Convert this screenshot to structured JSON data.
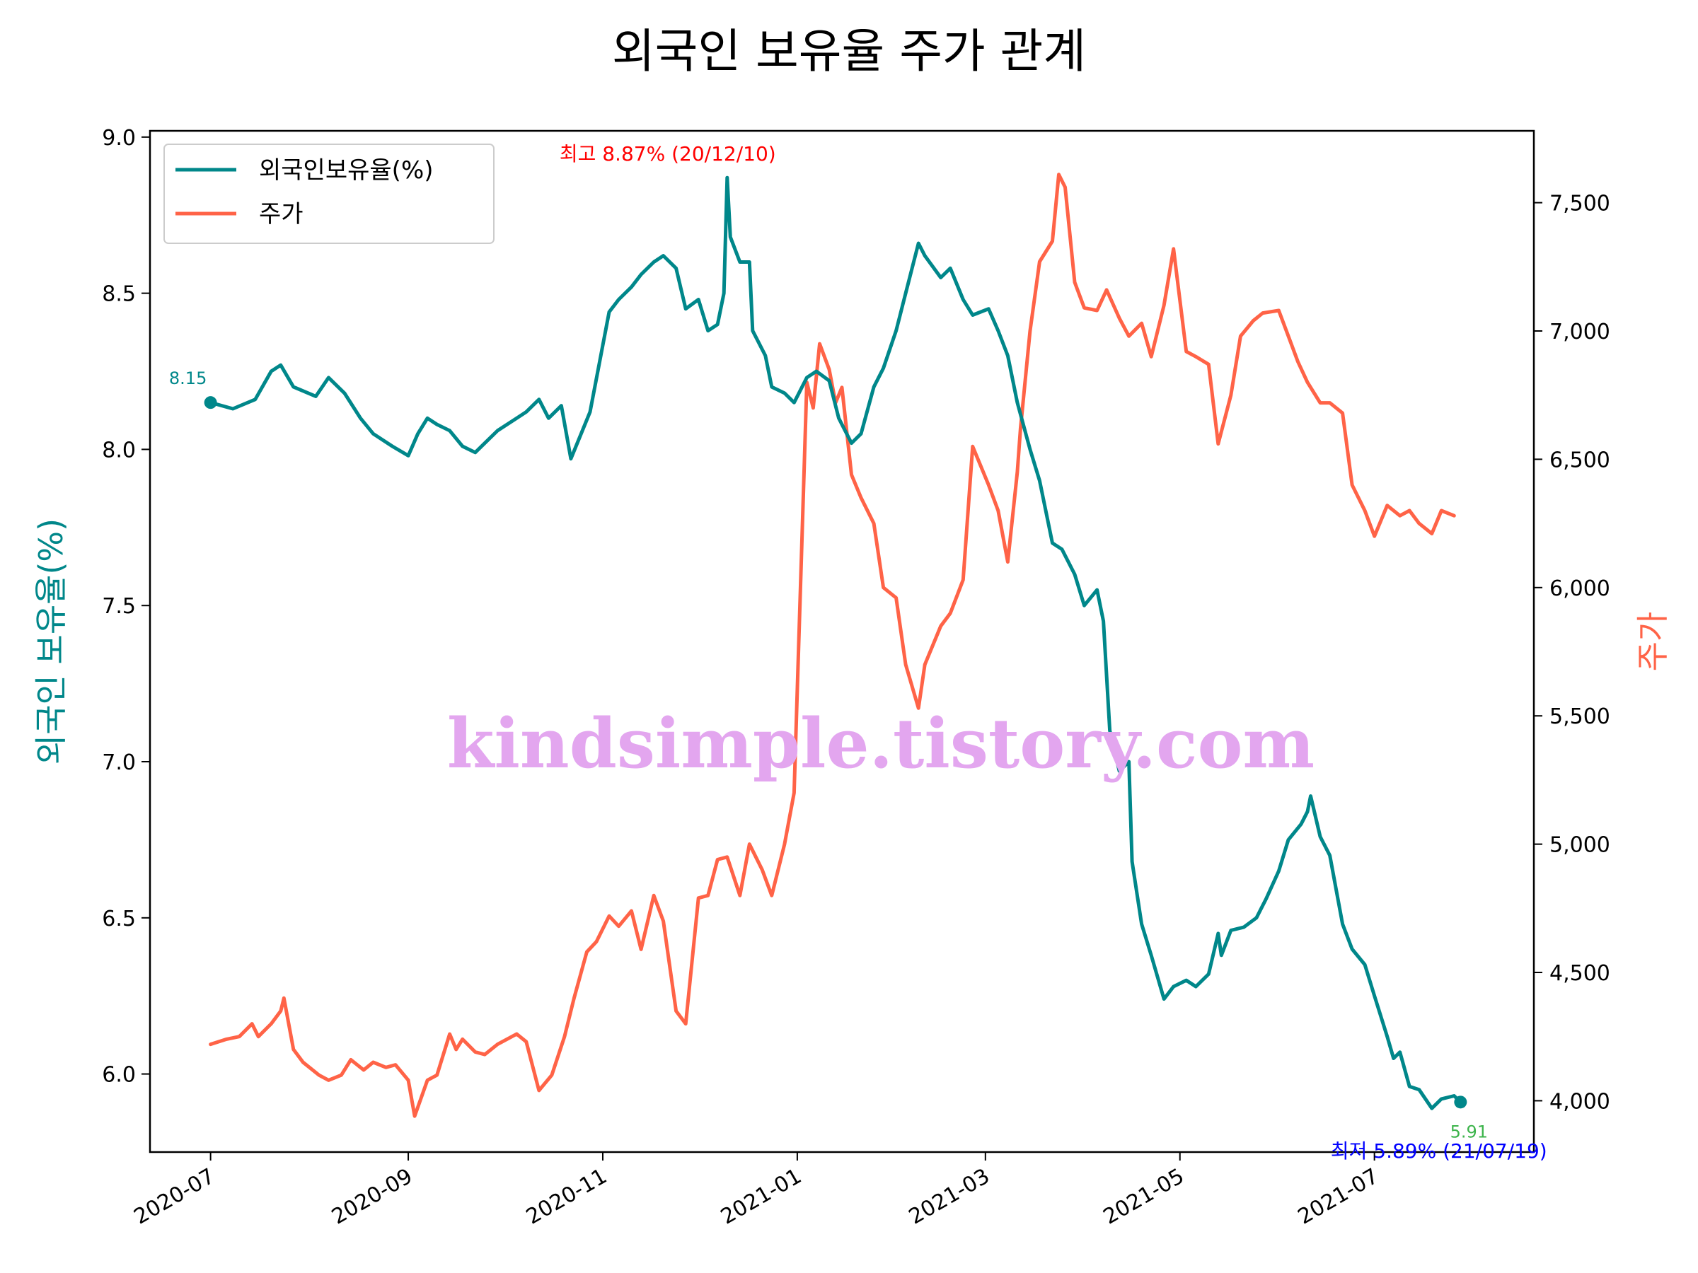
{
  "chart_data": {
    "type": "line",
    "title": "외국인 보유율 주가 관계",
    "y1label": "외국인 보유율(%)",
    "y2label": "주가",
    "y1lim": [
      5.75,
      9.02
    ],
    "y2lim": [
      3800,
      7780
    ],
    "y1ticks": [
      "6.0",
      "6.5",
      "7.0",
      "7.5",
      "8.0",
      "8.5",
      "9.0"
    ],
    "y2ticks": [
      "4,000",
      "4,500",
      "5,000",
      "5,500",
      "6,000",
      "6,500",
      "7,000",
      "7,500"
    ],
    "xticks": [
      "2020-07",
      "2020-09",
      "2020-11",
      "2021-01",
      "2021-03",
      "2021-05",
      "2021-07"
    ],
    "legend_position": "top-left",
    "grid": false,
    "colors": {
      "holding": "#00878a",
      "price": "#ff6347",
      "max": "#ff0000",
      "min": "#0000ff",
      "end": "#3cb44b",
      "watermark": "#e3a6ef"
    },
    "series": [
      {
        "name": "외국인보유율(%)",
        "axis": "left",
        "points": [
          [
            "2020-07-01",
            8.15
          ],
          [
            "2020-07-08",
            8.13
          ],
          [
            "2020-07-15",
            8.16
          ],
          [
            "2020-07-20",
            8.25
          ],
          [
            "2020-07-23",
            8.27
          ],
          [
            "2020-07-27",
            8.2
          ],
          [
            "2020-08-03",
            8.17
          ],
          [
            "2020-08-07",
            8.23
          ],
          [
            "2020-08-12",
            8.18
          ],
          [
            "2020-08-17",
            8.1
          ],
          [
            "2020-08-21",
            8.05
          ],
          [
            "2020-08-27",
            8.01
          ],
          [
            "2020-09-01",
            7.98
          ],
          [
            "2020-09-04",
            8.05
          ],
          [
            "2020-09-07",
            8.1
          ],
          [
            "2020-09-10",
            8.08
          ],
          [
            "2020-09-14",
            8.06
          ],
          [
            "2020-09-18",
            8.01
          ],
          [
            "2020-09-22",
            7.99
          ],
          [
            "2020-09-25",
            8.02
          ],
          [
            "2020-09-29",
            8.06
          ],
          [
            "2020-10-05",
            8.1
          ],
          [
            "2020-10-08",
            8.12
          ],
          [
            "2020-10-12",
            8.16
          ],
          [
            "2020-10-15",
            8.1
          ],
          [
            "2020-10-19",
            8.14
          ],
          [
            "2020-10-22",
            7.97
          ],
          [
            "2020-10-28",
            8.12
          ],
          [
            "2020-11-03",
            8.44
          ],
          [
            "2020-11-06",
            8.48
          ],
          [
            "2020-11-10",
            8.52
          ],
          [
            "2020-11-13",
            8.56
          ],
          [
            "2020-11-17",
            8.6
          ],
          [
            "2020-11-20",
            8.62
          ],
          [
            "2020-11-24",
            8.58
          ],
          [
            "2020-11-27",
            8.45
          ],
          [
            "2020-12-01",
            8.48
          ],
          [
            "2020-12-04",
            8.38
          ],
          [
            "2020-12-07",
            8.4
          ],
          [
            "2020-12-09",
            8.5
          ],
          [
            "2020-12-10",
            8.87
          ],
          [
            "2020-12-11",
            8.68
          ],
          [
            "2020-12-14",
            8.6
          ],
          [
            "2020-12-17",
            8.6
          ],
          [
            "2020-12-18",
            8.38
          ],
          [
            "2020-12-22",
            8.3
          ],
          [
            "2020-12-24",
            8.2
          ],
          [
            "2020-12-28",
            8.18
          ],
          [
            "2020-12-31",
            8.15
          ],
          [
            "2021-01-04",
            8.23
          ],
          [
            "2021-01-07",
            8.25
          ],
          [
            "2021-01-11",
            8.22
          ],
          [
            "2021-01-14",
            8.1
          ],
          [
            "2021-01-18",
            8.02
          ],
          [
            "2021-01-21",
            8.05
          ],
          [
            "2021-01-25",
            8.2
          ],
          [
            "2021-01-28",
            8.26
          ],
          [
            "2021-02-01",
            8.38
          ],
          [
            "2021-02-04",
            8.5
          ],
          [
            "2021-02-08",
            8.66
          ],
          [
            "2021-02-10",
            8.62
          ],
          [
            "2021-02-15",
            8.55
          ],
          [
            "2021-02-18",
            8.58
          ],
          [
            "2021-02-22",
            8.48
          ],
          [
            "2021-02-25",
            8.43
          ],
          [
            "2021-03-02",
            8.45
          ],
          [
            "2021-03-05",
            8.38
          ],
          [
            "2021-03-08",
            8.3
          ],
          [
            "2021-03-11",
            8.15
          ],
          [
            "2021-03-15",
            8.0
          ],
          [
            "2021-03-18",
            7.9
          ],
          [
            "2021-03-22",
            7.7
          ],
          [
            "2021-03-25",
            7.68
          ],
          [
            "2021-03-29",
            7.6
          ],
          [
            "2021-04-01",
            7.5
          ],
          [
            "2021-04-05",
            7.55
          ],
          [
            "2021-04-07",
            7.45
          ],
          [
            "2021-04-09",
            7.1
          ],
          [
            "2021-04-12",
            6.97
          ],
          [
            "2021-04-15",
            7.0
          ],
          [
            "2021-04-16",
            6.68
          ],
          [
            "2021-04-19",
            6.48
          ],
          [
            "2021-04-22",
            6.38
          ],
          [
            "2021-04-26",
            6.24
          ],
          [
            "2021-04-29",
            6.28
          ],
          [
            "2021-05-03",
            6.3
          ],
          [
            "2021-05-06",
            6.28
          ],
          [
            "2021-05-10",
            6.32
          ],
          [
            "2021-05-13",
            6.45
          ],
          [
            "2021-05-14",
            6.38
          ],
          [
            "2021-05-17",
            6.46
          ],
          [
            "2021-05-21",
            6.47
          ],
          [
            "2021-05-25",
            6.5
          ],
          [
            "2021-05-28",
            6.56
          ],
          [
            "2021-06-01",
            6.65
          ],
          [
            "2021-06-04",
            6.75
          ],
          [
            "2021-06-08",
            6.8
          ],
          [
            "2021-06-10",
            6.84
          ],
          [
            "2021-06-11",
            6.89
          ],
          [
            "2021-06-14",
            6.76
          ],
          [
            "2021-06-17",
            6.7
          ],
          [
            "2021-06-21",
            6.48
          ],
          [
            "2021-06-24",
            6.4
          ],
          [
            "2021-06-28",
            6.35
          ],
          [
            "2021-07-01",
            6.25
          ],
          [
            "2021-07-05",
            6.12
          ],
          [
            "2021-07-07",
            6.05
          ],
          [
            "2021-07-09",
            6.07
          ],
          [
            "2021-07-12",
            5.96
          ],
          [
            "2021-07-15",
            5.95
          ],
          [
            "2021-07-19",
            5.89
          ],
          [
            "2021-07-22",
            5.92
          ],
          [
            "2021-07-26",
            5.93
          ],
          [
            "2021-07-28",
            5.91
          ]
        ]
      },
      {
        "name": "주가",
        "axis": "right",
        "points": [
          [
            "2020-07-01",
            4220
          ],
          [
            "2020-07-06",
            4240
          ],
          [
            "2020-07-10",
            4250
          ],
          [
            "2020-07-14",
            4300
          ],
          [
            "2020-07-16",
            4250
          ],
          [
            "2020-07-20",
            4300
          ],
          [
            "2020-07-23",
            4350
          ],
          [
            "2020-07-24",
            4400
          ],
          [
            "2020-07-27",
            4200
          ],
          [
            "2020-07-30",
            4150
          ],
          [
            "2020-08-04",
            4100
          ],
          [
            "2020-08-07",
            4080
          ],
          [
            "2020-08-11",
            4100
          ],
          [
            "2020-08-14",
            4160
          ],
          [
            "2020-08-18",
            4120
          ],
          [
            "2020-08-21",
            4150
          ],
          [
            "2020-08-25",
            4130
          ],
          [
            "2020-08-28",
            4140
          ],
          [
            "2020-09-01",
            4080
          ],
          [
            "2020-09-03",
            3940
          ],
          [
            "2020-09-07",
            4080
          ],
          [
            "2020-09-10",
            4100
          ],
          [
            "2020-09-14",
            4260
          ],
          [
            "2020-09-16",
            4200
          ],
          [
            "2020-09-18",
            4240
          ],
          [
            "2020-09-22",
            4190
          ],
          [
            "2020-09-25",
            4180
          ],
          [
            "2020-09-29",
            4220
          ],
          [
            "2020-10-05",
            4260
          ],
          [
            "2020-10-08",
            4230
          ],
          [
            "2020-10-12",
            4040
          ],
          [
            "2020-10-16",
            4100
          ],
          [
            "2020-10-20",
            4250
          ],
          [
            "2020-10-23",
            4400
          ],
          [
            "2020-10-27",
            4580
          ],
          [
            "2020-10-30",
            4620
          ],
          [
            "2020-11-03",
            4720
          ],
          [
            "2020-11-06",
            4680
          ],
          [
            "2020-11-10",
            4740
          ],
          [
            "2020-11-13",
            4590
          ],
          [
            "2020-11-17",
            4800
          ],
          [
            "2020-11-20",
            4700
          ],
          [
            "2020-11-24",
            4350
          ],
          [
            "2020-11-27",
            4300
          ],
          [
            "2020-12-01",
            4790
          ],
          [
            "2020-12-04",
            4800
          ],
          [
            "2020-12-07",
            4940
          ],
          [
            "2020-12-10",
            4950
          ],
          [
            "2020-12-14",
            4800
          ],
          [
            "2020-12-17",
            5000
          ],
          [
            "2020-12-21",
            4900
          ],
          [
            "2020-12-24",
            4800
          ],
          [
            "2020-12-28",
            5000
          ],
          [
            "2020-12-31",
            5200
          ],
          [
            "2021-01-04",
            6800
          ],
          [
            "2021-01-06",
            6700
          ],
          [
            "2021-01-08",
            6950
          ],
          [
            "2021-01-11",
            6850
          ],
          [
            "2021-01-13",
            6720
          ],
          [
            "2021-01-15",
            6780
          ],
          [
            "2021-01-18",
            6440
          ],
          [
            "2021-01-21",
            6350
          ],
          [
            "2021-01-25",
            6250
          ],
          [
            "2021-01-28",
            6000
          ],
          [
            "2021-02-01",
            5960
          ],
          [
            "2021-02-04",
            5700
          ],
          [
            "2021-02-08",
            5530
          ],
          [
            "2021-02-10",
            5700
          ],
          [
            "2021-02-15",
            5850
          ],
          [
            "2021-02-18",
            5900
          ],
          [
            "2021-02-22",
            6030
          ],
          [
            "2021-02-25",
            6550
          ],
          [
            "2021-03-02",
            6400
          ],
          [
            "2021-03-05",
            6300
          ],
          [
            "2021-03-08",
            6100
          ],
          [
            "2021-03-11",
            6450
          ],
          [
            "2021-03-12",
            6620
          ],
          [
            "2021-03-15",
            7000
          ],
          [
            "2021-03-18",
            7270
          ],
          [
            "2021-03-22",
            7350
          ],
          [
            "2021-03-24",
            7610
          ],
          [
            "2021-03-26",
            7560
          ],
          [
            "2021-03-29",
            7190
          ],
          [
            "2021-04-01",
            7090
          ],
          [
            "2021-04-05",
            7080
          ],
          [
            "2021-04-08",
            7160
          ],
          [
            "2021-04-12",
            7050
          ],
          [
            "2021-04-15",
            6980
          ],
          [
            "2021-04-19",
            7030
          ],
          [
            "2021-04-22",
            6900
          ],
          [
            "2021-04-26",
            7100
          ],
          [
            "2021-04-29",
            7320
          ],
          [
            "2021-05-03",
            6920
          ],
          [
            "2021-05-06",
            6900
          ],
          [
            "2021-05-10",
            6870
          ],
          [
            "2021-05-13",
            6560
          ],
          [
            "2021-05-17",
            6750
          ],
          [
            "2021-05-20",
            6980
          ],
          [
            "2021-05-24",
            7040
          ],
          [
            "2021-05-27",
            7070
          ],
          [
            "2021-06-01",
            7080
          ],
          [
            "2021-06-04",
            6980
          ],
          [
            "2021-06-07",
            6880
          ],
          [
            "2021-06-10",
            6800
          ],
          [
            "2021-06-14",
            6720
          ],
          [
            "2021-06-17",
            6720
          ],
          [
            "2021-06-21",
            6680
          ],
          [
            "2021-06-24",
            6400
          ],
          [
            "2021-06-28",
            6300
          ],
          [
            "2021-07-01",
            6200
          ],
          [
            "2021-07-05",
            6320
          ],
          [
            "2021-07-09",
            6280
          ],
          [
            "2021-07-12",
            6300
          ],
          [
            "2021-07-15",
            6250
          ],
          [
            "2021-07-19",
            6210
          ],
          [
            "2021-07-22",
            6300
          ],
          [
            "2021-07-26",
            6280
          ]
        ]
      }
    ],
    "annotations": {
      "max_label": "최고 8.87% (20/12/10)",
      "min_label": "최저 5.89% (21/07/19)",
      "start_value": "8.15",
      "end_value": "5.91"
    },
    "watermark": "kindsimple.tistory.com"
  }
}
